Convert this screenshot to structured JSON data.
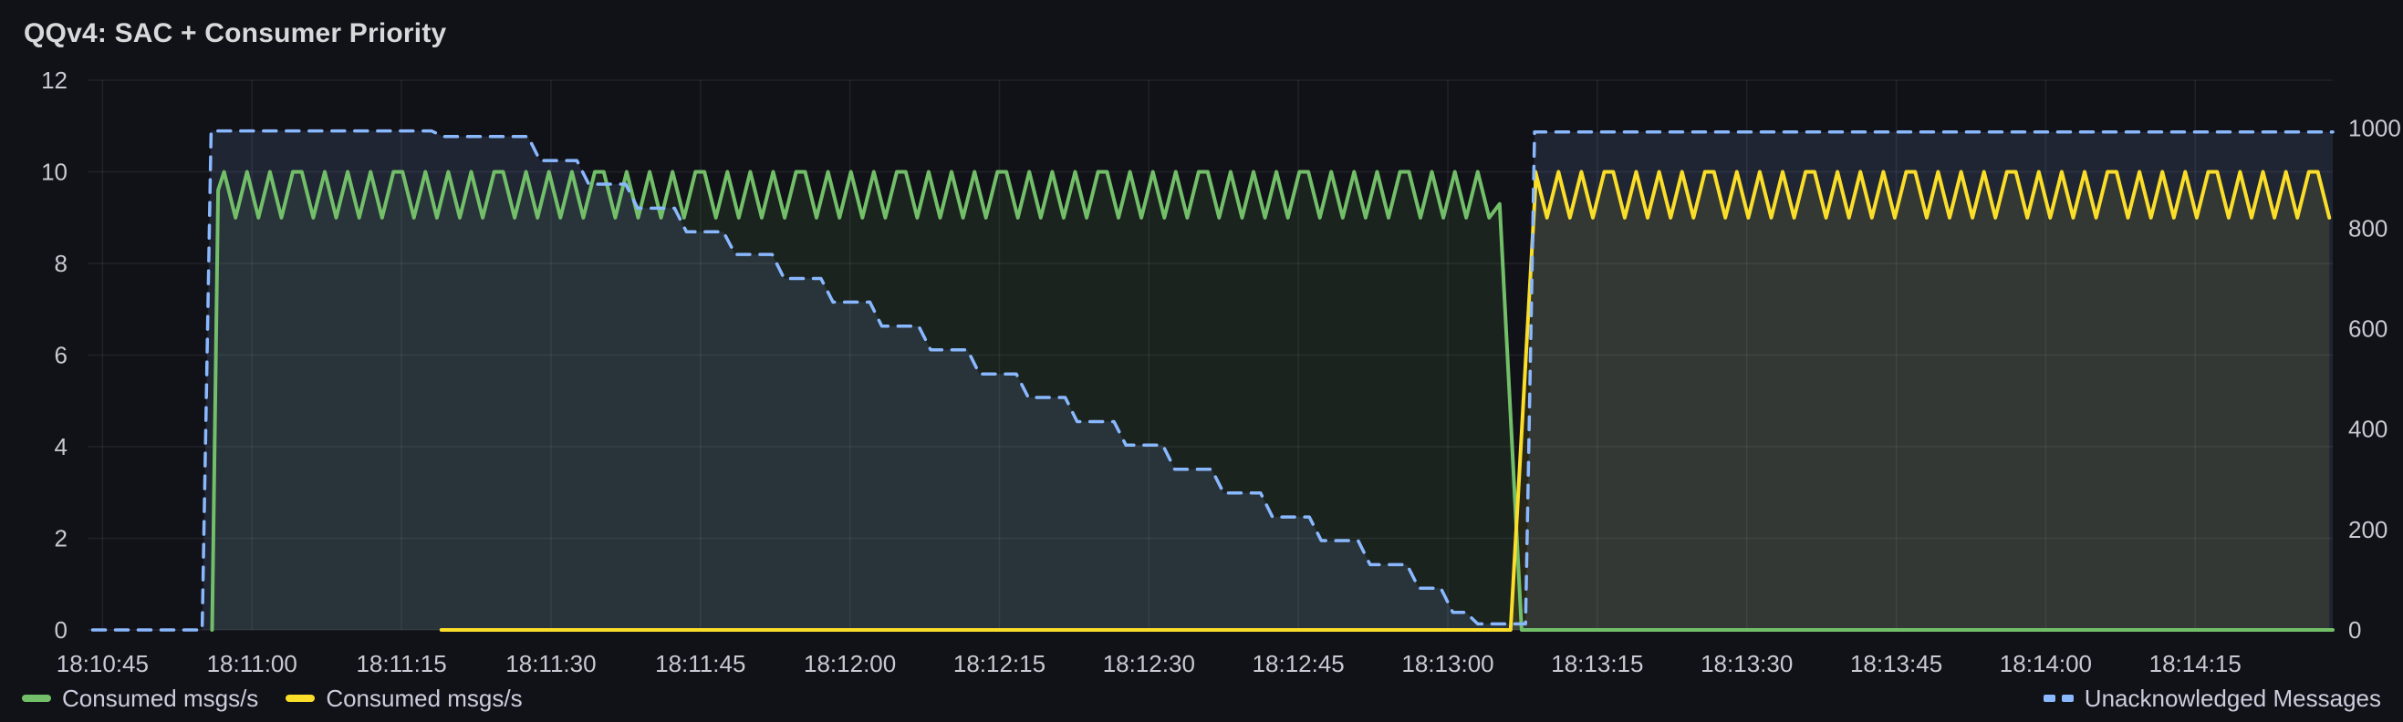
{
  "panel": {
    "title": "QQv4: SAC + Consumer Priority"
  },
  "colors": {
    "background": "#111217",
    "title_text": "#D8D9DA",
    "tick_text": "#C8C9D2",
    "legend_text": "#CCCCDC",
    "grid": "rgba(204,204,220,0.09)",
    "green": "#73BF69",
    "yellow": "#FADE2A",
    "blue": "#8AB8FF"
  },
  "legend": {
    "items": [
      {
        "label": "Consumed msgs/s",
        "color": "#73BF69",
        "dash": false,
        "placement": "left"
      },
      {
        "label": "Consumed msgs/s",
        "color": "#FADE2A",
        "dash": false,
        "placement": "left"
      },
      {
        "label": "Unacknowledged Messages",
        "color": "#8AB8FF",
        "dash": true,
        "placement": "right"
      }
    ]
  },
  "chart_data": {
    "type": "line",
    "title": "QQv4: SAC + Consumer Priority",
    "time_start": "18:10:44",
    "time_end": "18:14:29",
    "t_domain": [
      -0.5,
      224.8
    ],
    "x_ticks": [
      {
        "t": 1,
        "label": "18:10:45"
      },
      {
        "t": 16,
        "label": "18:11:00"
      },
      {
        "t": 31,
        "label": "18:11:15"
      },
      {
        "t": 46,
        "label": "18:11:30"
      },
      {
        "t": 61,
        "label": "18:11:45"
      },
      {
        "t": 76,
        "label": "18:12:00"
      },
      {
        "t": 91,
        "label": "18:12:15"
      },
      {
        "t": 106,
        "label": "18:12:30"
      },
      {
        "t": 121,
        "label": "18:12:45"
      },
      {
        "t": 136,
        "label": "18:13:00"
      },
      {
        "t": 151,
        "label": "18:13:15"
      },
      {
        "t": 166,
        "label": "18:13:30"
      },
      {
        "t": 181,
        "label": "18:13:45"
      },
      {
        "t": 196,
        "label": "18:14:00"
      },
      {
        "t": 211,
        "label": "18:14:15"
      }
    ],
    "y_left": {
      "min": 0,
      "max_at_top": 12,
      "ticks": [
        0,
        2,
        4,
        6,
        8,
        10,
        12
      ]
    },
    "y_right": {
      "min": 0,
      "max_at_top": 1095,
      "ticks": [
        0,
        200,
        400,
        600,
        800,
        1000
      ]
    },
    "grid": true,
    "legend_position": "bottom",
    "series": [
      {
        "name": "Consumed msgs/s",
        "color": "#73BF69",
        "axis": "left",
        "style": "solid",
        "fill_opacity": 0.1,
        "segments": [
          {
            "type": "line",
            "points": [
              [
                12.0,
                0
              ],
              [
                12.6,
                9.6
              ],
              [
                13.2,
                10
              ]
            ]
          },
          {
            "type": "osc",
            "t0": 13.2,
            "t1": 141.2,
            "lo": 9,
            "hi": 10,
            "period": 2.3,
            "flat_every": 4,
            "flat_len": 0.9
          },
          {
            "type": "line",
            "points": [
              [
                141.2,
                9.3
              ],
              [
                143.4,
                0
              ],
              [
                224.8,
                0
              ]
            ]
          }
        ]
      },
      {
        "name": "Consumed msgs/s",
        "color": "#FADE2A",
        "axis": "left",
        "style": "solid",
        "fill_opacity": 0.1,
        "segments": [
          {
            "type": "line",
            "points": [
              [
                35.0,
                0
              ],
              [
                142.3,
                0
              ],
              [
                144.8,
                9.7
              ]
            ]
          },
          {
            "type": "osc",
            "t0": 144.8,
            "t1": 224.8,
            "lo": 9,
            "hi": 10,
            "period": 2.3,
            "flat_every": 4,
            "flat_len": 0.9
          }
        ]
      },
      {
        "name": "Unacknowledged Messages",
        "color": "#8AB8FF",
        "axis": "right",
        "style": "dashed",
        "fill_opacity": 0.12,
        "segments": [
          {
            "type": "line",
            "points": [
              [
                0,
                0
              ],
              [
                11.0,
                0
              ],
              [
                11.9,
                994
              ],
              [
                34.0,
                994
              ],
              [
                35.2,
                983
              ]
            ]
          },
          {
            "type": "steps",
            "ramp": 1.2,
            "points": [
              [
                40.0,
                983
              ],
              [
                44.9,
                935
              ],
              [
                49.8,
                888
              ],
              [
                54.7,
                840
              ],
              [
                59.6,
                793
              ],
              [
                64.5,
                748
              ],
              [
                69.4,
                700
              ],
              [
                74.3,
                653
              ],
              [
                79.2,
                605
              ],
              [
                84.1,
                558
              ],
              [
                89.0,
                510
              ],
              [
                93.9,
                463
              ],
              [
                98.8,
                415
              ],
              [
                103.7,
                368
              ],
              [
                108.6,
                320
              ],
              [
                113.5,
                273
              ],
              [
                118.4,
                225
              ],
              [
                123.3,
                178
              ],
              [
                128.2,
                130
              ],
              [
                133.1,
                83
              ],
              [
                136.5,
                35
              ],
              [
                139.0,
                12
              ]
            ]
          },
          {
            "type": "line",
            "points": [
              [
                143.8,
                12
              ],
              [
                144.7,
                992
              ],
              [
                224.8,
                992
              ]
            ]
          }
        ]
      }
    ]
  }
}
